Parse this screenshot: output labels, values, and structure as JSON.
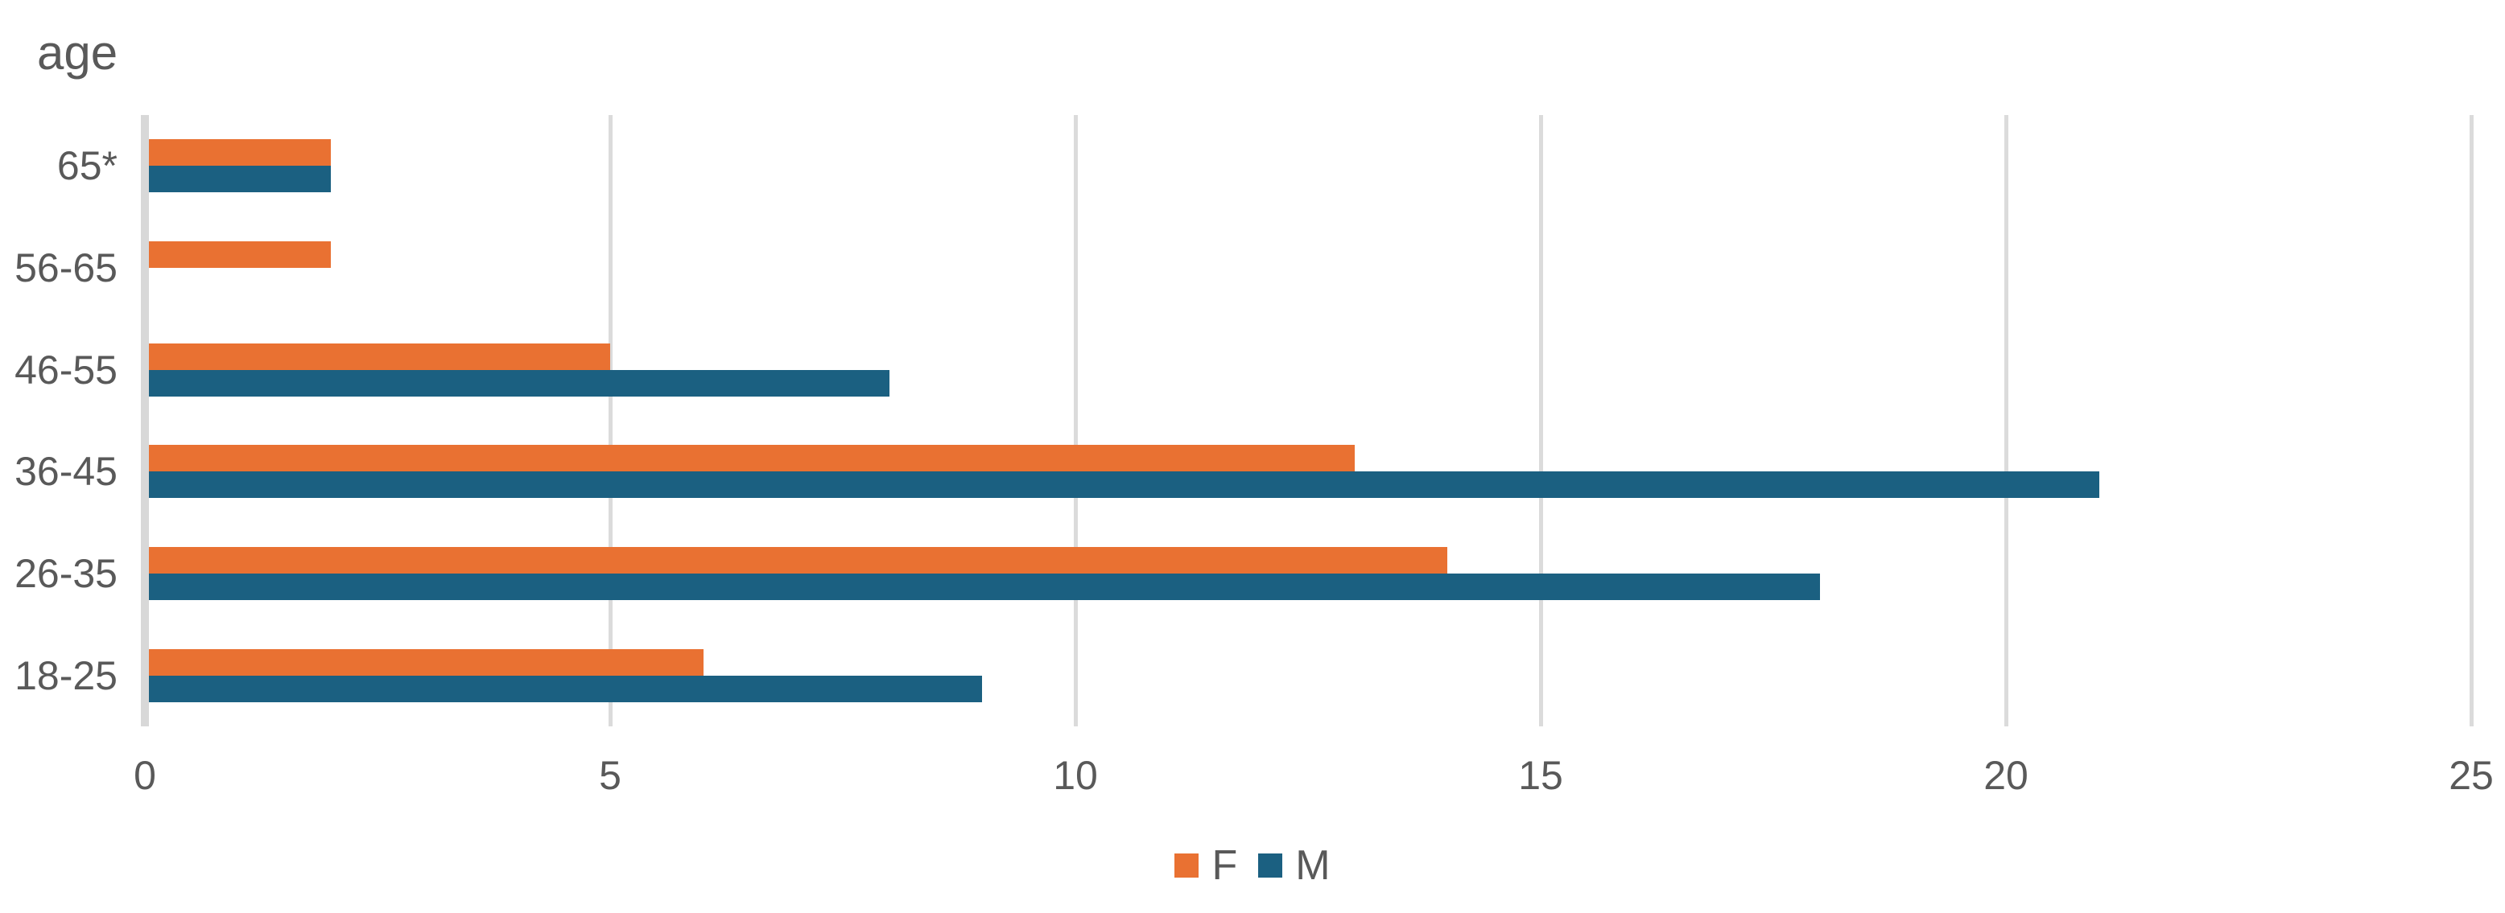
{
  "chart_data": {
    "type": "bar",
    "orientation": "horizontal",
    "title": "age",
    "categories": [
      "65*",
      "56-65",
      "46-55",
      "36-45",
      "26-35",
      "18-25"
    ],
    "series": [
      {
        "name": "F",
        "color": "#E97132",
        "values": [
          2,
          2,
          5,
          13,
          14,
          6
        ]
      },
      {
        "name": "M",
        "color": "#1B6081",
        "values": [
          2,
          0,
          8,
          21,
          18,
          9
        ]
      }
    ],
    "x_axis": {
      "min": 0,
      "max": 25,
      "ticks": [
        0,
        5,
        10,
        15,
        20,
        25
      ]
    },
    "y_axis_label_position": "left",
    "legend": {
      "position": "bottom-center",
      "entries": [
        "F",
        "M"
      ]
    },
    "grid": true,
    "colors": {
      "background": "#FFFFFF",
      "text": "#595959",
      "gridline": "#DBDBDB"
    }
  }
}
